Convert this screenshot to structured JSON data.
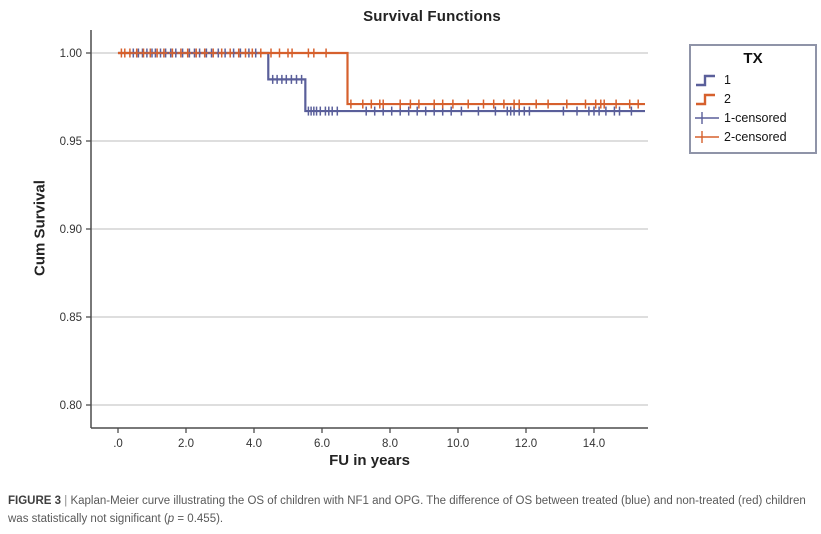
{
  "figure": {
    "title": "Survival Functions",
    "x_axis_label": "FU in years",
    "y_axis_label": "Cum Survival"
  },
  "style": {
    "accent_blue": "#5a5f9a",
    "accent_orange": "#d6602d",
    "grid_color": "#c9c9c9",
    "axis_color": "#4d4d4d",
    "tick_color": "#343434",
    "legend_border": "#8f94a8"
  },
  "legend": {
    "title": "TX",
    "items": [
      {
        "label": "1",
        "type": "line",
        "color": "#5a5f9a"
      },
      {
        "label": "2",
        "type": "line",
        "color": "#d6602d"
      },
      {
        "label": "1-censored",
        "type": "censor",
        "color": "#5a5f9a"
      },
      {
        "label": "2-censored",
        "type": "censor",
        "color": "#d6602d"
      }
    ]
  },
  "chart_data": {
    "type": "line",
    "subtype": "kaplan-meier-step",
    "title": "Survival Functions",
    "xlabel": "FU in years",
    "ylabel": "Cum Survival",
    "xlim": [
      -0.8,
      15.6
    ],
    "ylim": [
      0.787,
      1.007
    ],
    "xticks": [
      ".0",
      "2.0",
      "4.0",
      "6.0",
      "8.0",
      "10.0",
      "12.0",
      "14.0"
    ],
    "xtick_values": [
      0,
      2,
      4,
      6,
      8,
      10,
      12,
      14
    ],
    "yticks": [
      "1.00",
      "0.95",
      "0.90",
      "0.85",
      "0.80"
    ],
    "ytick_values": [
      1.0,
      0.95,
      0.9,
      0.85,
      0.8
    ],
    "grid": "horizontal",
    "legend_position": "outside-right",
    "p_value": 0.455,
    "series": [
      {
        "name": "1",
        "group": "treated (blue)",
        "color": "#5a5f9a",
        "steps": [
          {
            "t": 0,
            "s": 1.0
          },
          {
            "t": 4.42,
            "s": 0.985
          },
          {
            "t": 5.51,
            "s": 0.967
          }
        ],
        "end_t": 15.5,
        "censored_times": [
          0.45,
          0.6,
          0.72,
          0.85,
          1.0,
          1.1,
          1.25,
          1.4,
          1.55,
          1.7,
          1.9,
          2.1,
          2.25,
          2.4,
          2.6,
          2.75,
          2.95,
          3.15,
          3.4,
          3.6,
          3.85,
          4.05,
          4.55,
          4.68,
          4.82,
          4.95,
          5.1,
          5.25,
          5.4,
          5.6,
          5.68,
          5.76,
          5.84,
          5.95,
          6.1,
          6.2,
          6.3,
          6.45,
          7.3,
          7.55,
          7.8,
          8.05,
          8.3,
          8.55,
          8.8,
          9.05,
          9.3,
          9.55,
          9.8,
          10.1,
          10.6,
          11.1,
          11.45,
          11.55,
          11.65,
          11.8,
          11.95,
          12.1,
          13.1,
          13.5,
          13.85,
          14.0,
          14.15,
          14.35,
          14.6,
          14.75,
          15.1
        ]
      },
      {
        "name": "2",
        "group": "non-treated (red)",
        "color": "#d6602d",
        "steps": [
          {
            "t": 0,
            "s": 1.0
          },
          {
            "t": 6.75,
            "s": 0.971
          }
        ],
        "end_t": 15.5,
        "censored_times": [
          0.1,
          0.2,
          0.35,
          0.55,
          0.75,
          0.95,
          1.15,
          1.35,
          1.6,
          1.85,
          2.05,
          2.3,
          2.55,
          2.8,
          3.05,
          3.3,
          3.55,
          3.75,
          3.95,
          4.2,
          4.5,
          4.75,
          5.0,
          5.12,
          5.6,
          5.76,
          6.12,
          6.85,
          7.2,
          7.45,
          7.7,
          7.8,
          8.3,
          8.6,
          8.85,
          9.3,
          9.55,
          9.85,
          10.3,
          10.75,
          11.05,
          11.35,
          11.65,
          11.8,
          12.3,
          12.65,
          13.2,
          13.75,
          14.05,
          14.2,
          14.3,
          14.65,
          15.05,
          15.3
        ]
      }
    ]
  },
  "caption": {
    "label": "FIGURE 3",
    "separator": " | ",
    "body1": "Kaplan-Meier curve illustrating the OS of children with NF1 and OPG. The difference of OS between treated (blue) and non-treated (red) children was statistically not significant (",
    "p": "p",
    "body2": " = 0.455)."
  }
}
